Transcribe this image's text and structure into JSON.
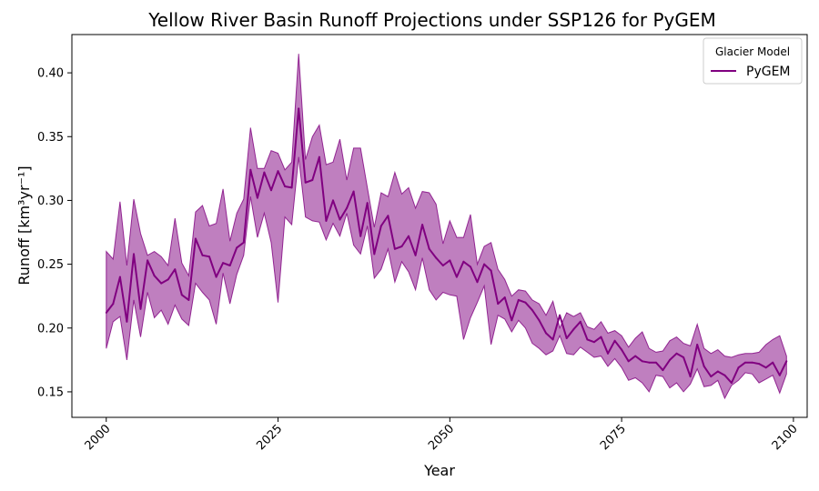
{
  "colors": {
    "series": "#800080",
    "band_fill": "#800080",
    "band_opacity": 0.5
  },
  "chart_data": {
    "type": "line",
    "title": "Yellow River Basin Runoff Projections under SSP126 for PyGEM",
    "xlabel": "Year",
    "ylabel": "Runoff [km³yr⁻¹]",
    "xlim": [
      1995,
      2102
    ],
    "ylim": [
      0.13,
      0.43
    ],
    "x_ticks": [
      2000,
      2025,
      2050,
      2075,
      2100
    ],
    "y_ticks": [
      0.15,
      0.2,
      0.25,
      0.3,
      0.35,
      0.4
    ],
    "y_tick_labels": [
      "0.15",
      "0.20",
      "0.25",
      "0.30",
      "0.35",
      "0.40"
    ],
    "legend": {
      "title": "Glacier Model",
      "position": "top-right"
    },
    "grid": false,
    "x": [
      2000,
      2001,
      2002,
      2003,
      2004,
      2005,
      2006,
      2007,
      2008,
      2009,
      2010,
      2011,
      2012,
      2013,
      2014,
      2015,
      2016,
      2017,
      2018,
      2019,
      2020,
      2021,
      2022,
      2023,
      2024,
      2025,
      2026,
      2027,
      2028,
      2029,
      2030,
      2031,
      2032,
      2033,
      2034,
      2035,
      2036,
      2037,
      2038,
      2039,
      2040,
      2041,
      2042,
      2043,
      2044,
      2045,
      2046,
      2047,
      2048,
      2049,
      2050,
      2051,
      2052,
      2053,
      2054,
      2055,
      2056,
      2057,
      2058,
      2059,
      2060,
      2061,
      2062,
      2063,
      2064,
      2065,
      2066,
      2067,
      2068,
      2069,
      2070,
      2071,
      2072,
      2073,
      2074,
      2075,
      2076,
      2077,
      2078,
      2079,
      2080,
      2081,
      2082,
      2083,
      2084,
      2085,
      2086,
      2087,
      2088,
      2089,
      2090,
      2091,
      2092,
      2093,
      2094,
      2095,
      2096,
      2097,
      2098,
      2099
    ],
    "series": [
      {
        "name": "PyGEM",
        "mean": [
          0.212,
          0.219,
          0.24,
          0.205,
          0.258,
          0.215,
          0.253,
          0.241,
          0.235,
          0.238,
          0.246,
          0.226,
          0.222,
          0.27,
          0.257,
          0.256,
          0.24,
          0.251,
          0.249,
          0.263,
          0.267,
          0.324,
          0.302,
          0.322,
          0.308,
          0.323,
          0.311,
          0.31,
          0.372,
          0.314,
          0.316,
          0.334,
          0.284,
          0.3,
          0.285,
          0.294,
          0.307,
          0.272,
          0.298,
          0.258,
          0.28,
          0.288,
          0.262,
          0.264,
          0.272,
          0.257,
          0.281,
          0.262,
          0.255,
          0.249,
          0.253,
          0.24,
          0.252,
          0.248,
          0.236,
          0.25,
          0.245,
          0.219,
          0.224,
          0.206,
          0.222,
          0.22,
          0.214,
          0.206,
          0.196,
          0.191,
          0.21,
          0.192,
          0.199,
          0.205,
          0.191,
          0.189,
          0.193,
          0.18,
          0.19,
          0.183,
          0.174,
          0.178,
          0.174,
          0.173,
          0.173,
          0.167,
          0.175,
          0.18,
          0.177,
          0.162,
          0.187,
          0.17,
          0.162,
          0.166,
          0.163,
          0.157,
          0.169,
          0.173,
          0.173,
          0.172,
          0.169,
          0.173,
          0.163,
          0.174
        ],
        "upper": [
          0.26,
          0.254,
          0.299,
          0.249,
          0.301,
          0.274,
          0.257,
          0.26,
          0.256,
          0.249,
          0.286,
          0.251,
          0.241,
          0.291,
          0.296,
          0.28,
          0.282,
          0.309,
          0.268,
          0.29,
          0.301,
          0.357,
          0.325,
          0.325,
          0.339,
          0.337,
          0.324,
          0.33,
          0.415,
          0.332,
          0.35,
          0.359,
          0.328,
          0.33,
          0.348,
          0.316,
          0.341,
          0.341,
          0.31,
          0.279,
          0.306,
          0.303,
          0.322,
          0.305,
          0.31,
          0.294,
          0.307,
          0.306,
          0.297,
          0.266,
          0.284,
          0.271,
          0.271,
          0.289,
          0.25,
          0.264,
          0.267,
          0.246,
          0.238,
          0.225,
          0.23,
          0.229,
          0.222,
          0.219,
          0.21,
          0.221,
          0.2,
          0.212,
          0.209,
          0.212,
          0.201,
          0.199,
          0.205,
          0.196,
          0.198,
          0.194,
          0.185,
          0.192,
          0.197,
          0.184,
          0.181,
          0.182,
          0.19,
          0.193,
          0.188,
          0.186,
          0.203,
          0.184,
          0.18,
          0.183,
          0.178,
          0.177,
          0.179,
          0.18,
          0.18,
          0.181,
          0.187,
          0.191,
          0.194,
          0.178
        ],
        "lower": [
          0.184,
          0.205,
          0.209,
          0.175,
          0.222,
          0.193,
          0.228,
          0.208,
          0.214,
          0.203,
          0.218,
          0.207,
          0.202,
          0.235,
          0.228,
          0.222,
          0.203,
          0.243,
          0.219,
          0.242,
          0.257,
          0.303,
          0.271,
          0.29,
          0.267,
          0.22,
          0.287,
          0.281,
          0.334,
          0.287,
          0.284,
          0.283,
          0.269,
          0.282,
          0.272,
          0.29,
          0.265,
          0.258,
          0.28,
          0.239,
          0.246,
          0.262,
          0.236,
          0.252,
          0.244,
          0.23,
          0.255,
          0.23,
          0.222,
          0.228,
          0.226,
          0.225,
          0.191,
          0.208,
          0.22,
          0.233,
          0.187,
          0.21,
          0.207,
          0.197,
          0.206,
          0.2,
          0.188,
          0.184,
          0.179,
          0.182,
          0.194,
          0.18,
          0.179,
          0.185,
          0.181,
          0.177,
          0.178,
          0.17,
          0.176,
          0.169,
          0.159,
          0.161,
          0.157,
          0.15,
          0.163,
          0.162,
          0.153,
          0.157,
          0.15,
          0.156,
          0.168,
          0.154,
          0.155,
          0.159,
          0.145,
          0.155,
          0.159,
          0.165,
          0.164,
          0.157,
          0.16,
          0.163,
          0.149,
          0.164
        ]
      }
    ]
  }
}
